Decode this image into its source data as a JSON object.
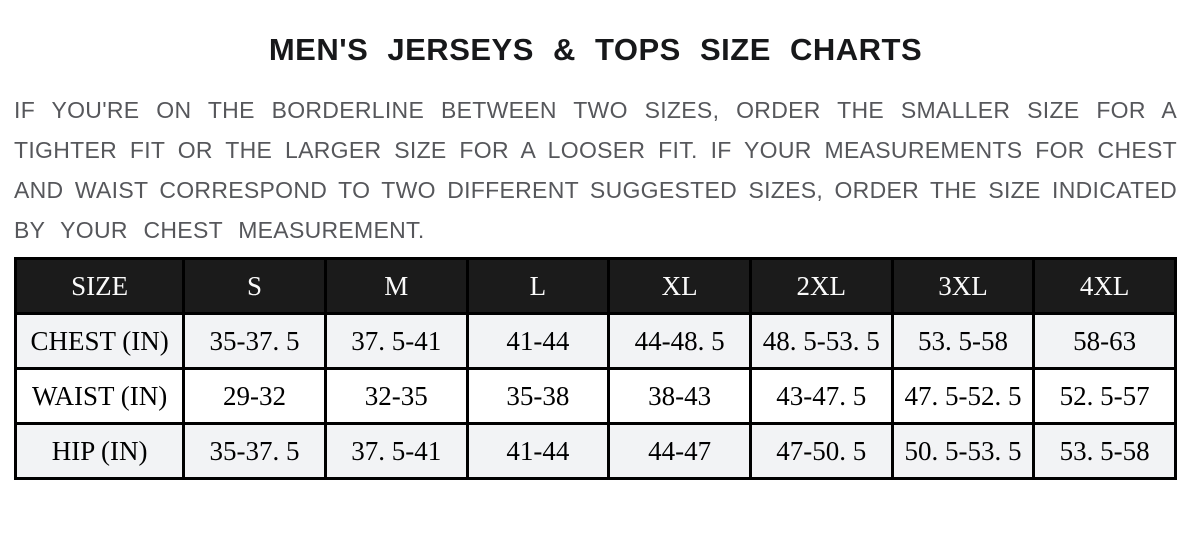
{
  "page": {
    "title": "MEN'S  JERSEYS  &  TOPS SIZE  CHARTS"
  },
  "intro": {
    "lines": [
      "IF YOU'RE ON THE BORDERLINE BETWEEN TWO SIZES, ORDER THE SMALLER SIZE FOR A",
      "TIGHTER FIT OR THE LARGER SIZE FOR A LOOSER FIT. IF YOUR MEASUREMENTS FOR CHEST",
      "AND WAIST CORRESPOND TO TWO DIFFERENT SUGGESTED SIZES, ORDER THE SIZE INDICATED",
      "BY YOUR CHEST MEASUREMENT."
    ]
  },
  "size_chart": {
    "columns": [
      "SIZE",
      "S",
      "M",
      "L",
      "XL",
      "2XL",
      "3XL",
      "4XL"
    ],
    "rows": [
      {
        "label": "CHEST (IN)",
        "values": [
          "35-37. 5",
          "37. 5-41",
          "41-44",
          "44-48. 5",
          "48. 5-53. 5",
          "53. 5-58",
          "58-63"
        ]
      },
      {
        "label": "WAIST (IN)",
        "values": [
          "29-32",
          "32-35",
          "35-38",
          "38-43",
          "43-47. 5",
          "47. 5-52. 5",
          "52. 5-57"
        ]
      },
      {
        "label": "HIP (IN)",
        "values": [
          "35-37. 5",
          "37. 5-41",
          "41-44",
          "44-47",
          "47-50. 5",
          "50. 5-53. 5",
          "53. 5-58"
        ]
      }
    ],
    "colors": {
      "header_background": "#1b1b1b",
      "header_text": "#fafafa",
      "striped_row_background": "#f2f3f5",
      "plain_row_background": "#ffffff",
      "table_border": "#000000",
      "title_text": "#17181a",
      "intro_text": "#56575b"
    }
  }
}
